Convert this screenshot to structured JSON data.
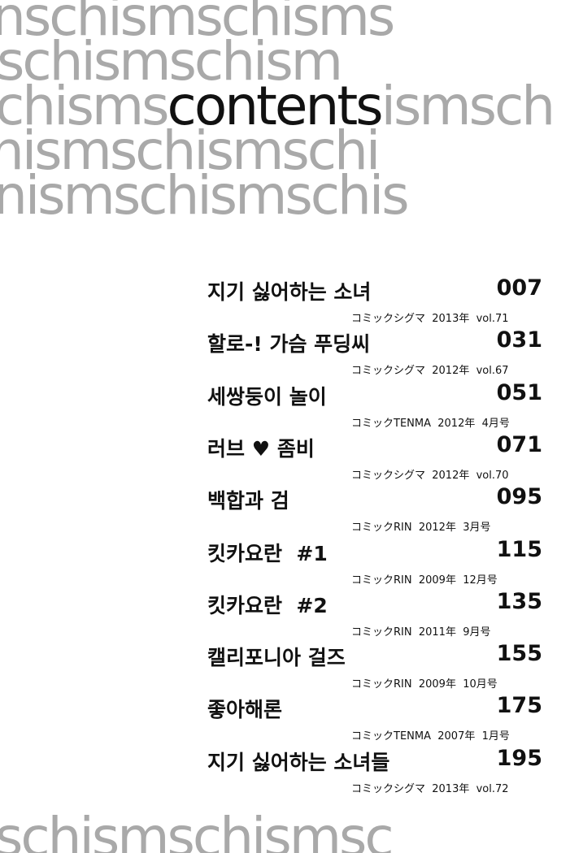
{
  "background": {
    "rows": [
      "nschismschisms",
      "schismschism",
      "hismschismschi",
      "nismschismschis"
    ],
    "left": "chisms",
    "right": "ismsch",
    "bottom": "schismschismsc"
  },
  "title": "contents",
  "entries": [
    {
      "title": "지기 싫어하는 소녀",
      "page": "007",
      "source": "コミックシグマ  2013年  vol.71"
    },
    {
      "title": "할로-! 가슴 푸딩씨",
      "page": "031",
      "source": "コミックシグマ  2012年  vol.67"
    },
    {
      "title": "세쌍둥이 놀이",
      "page": "051",
      "source": "コミックTENMA  2012年  4月号"
    },
    {
      "title": "러브 ♥ 좀비",
      "page": "071",
      "source": "コミックシグマ  2012年  vol.70"
    },
    {
      "title": "백합과 검",
      "page": "095",
      "source": "コミックRIN  2012年  3月号"
    },
    {
      "title": "킷카요란  #1",
      "page": "115",
      "source": "コミックRIN  2009年  12月号"
    },
    {
      "title": "킷카요란  #2",
      "page": "135",
      "source": "コミックRIN  2011年  9月号"
    },
    {
      "title": "캘리포니아 걸즈",
      "page": "155",
      "source": "コミックRIN  2009年  10月号"
    },
    {
      "title": "좋아해론",
      "page": "175",
      "source": "コミックTENMA  2007年  1月号"
    },
    {
      "title": "지기 싫어하는 소녀들",
      "page": "195",
      "source": "コミックシグマ  2013年  vol.72"
    }
  ]
}
